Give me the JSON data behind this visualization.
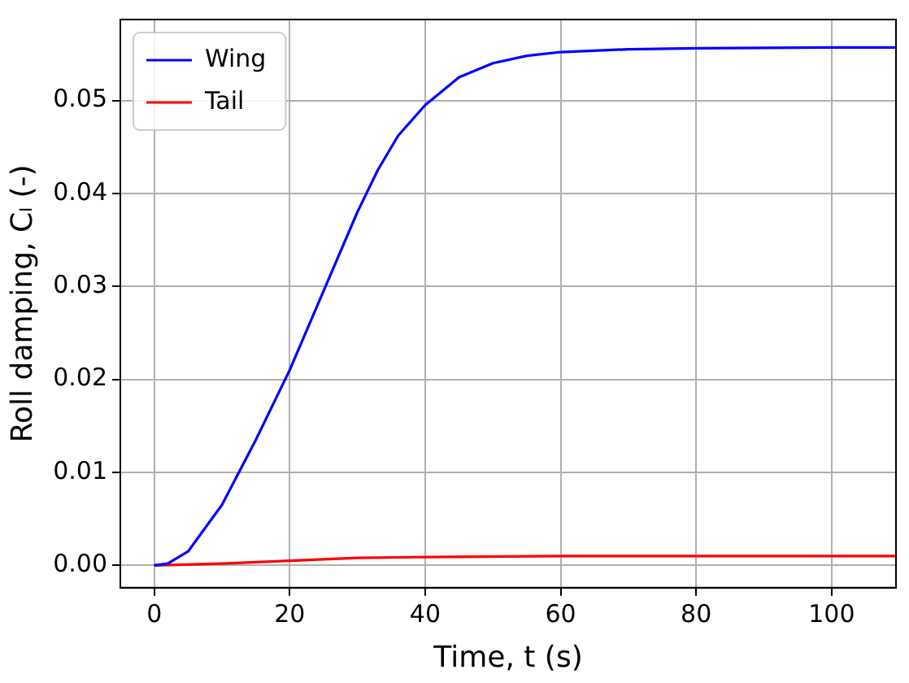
{
  "chart_data": {
    "type": "line",
    "xlabel": "Time, t (s)",
    "ylabel": "Roll damping, Cₗ (-)",
    "xlim": [
      -5,
      109.5
    ],
    "xticks": [
      0,
      20,
      40,
      60,
      80,
      100
    ],
    "ylim": [
      -0.0024,
      0.0587
    ],
    "yticks": [
      {
        "value": 0,
        "label": "0.00"
      },
      {
        "value": 0.01,
        "label": "0.01"
      },
      {
        "value": 0.02,
        "label": "0.02"
      },
      {
        "value": 0.03,
        "label": "0.03"
      },
      {
        "value": 0.04,
        "label": "0.04"
      },
      {
        "value": 0.05,
        "label": "0.05"
      }
    ],
    "grid": true,
    "legend": "top left",
    "marker": "none",
    "line_style": "solid",
    "series": [
      {
        "name": "Wing",
        "color": "#0000ff",
        "x": [
          0,
          2,
          5,
          10,
          15,
          20,
          25,
          30,
          33,
          36,
          40,
          45,
          50,
          55,
          60,
          70,
          80,
          100,
          109.5
        ],
        "values": [
          0,
          0.0002,
          0.0015,
          0.0065,
          0.0135,
          0.021,
          0.0295,
          0.038,
          0.0425,
          0.0462,
          0.0495,
          0.0525,
          0.054,
          0.0548,
          0.0552,
          0.0555,
          0.0556,
          0.0557,
          0.0557
        ]
      },
      {
        "name": "Tail",
        "color": "#ff0000",
        "x": [
          0,
          10,
          20,
          30,
          40,
          60,
          109.5
        ],
        "values": [
          0,
          0.0002,
          0.0005,
          0.0008,
          0.0009,
          0.001,
          0.001
        ]
      }
    ]
  }
}
